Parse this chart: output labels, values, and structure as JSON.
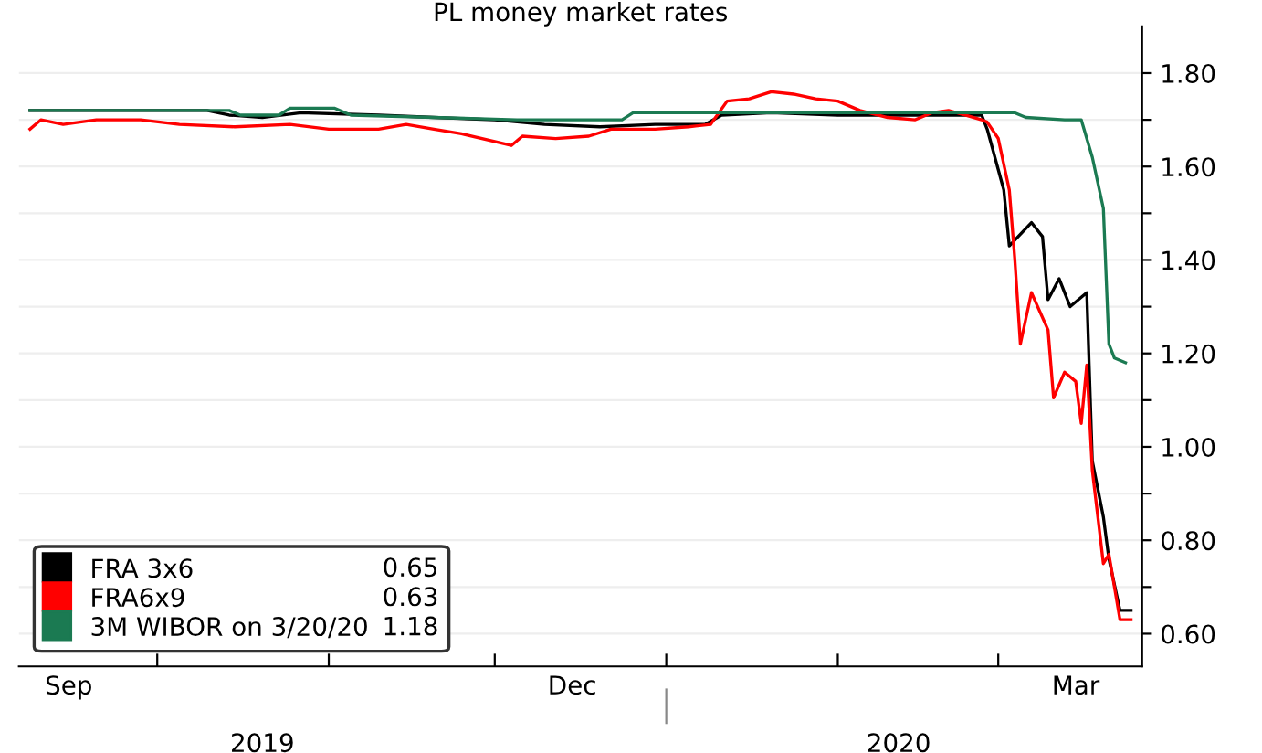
{
  "chart_data": {
    "type": "line",
    "title": "PL money market rates",
    "series": [
      {
        "name": "FRA 3x6",
        "color": "#000000",
        "x": [
          "2019-09-08",
          "2019-10-10",
          "2019-10-14",
          "2019-10-20",
          "2019-10-27",
          "2019-11-10",
          "2019-11-20",
          "2019-12-01",
          "2019-12-10",
          "2019-12-20",
          "2019-12-30",
          "2020-01-08",
          "2020-01-11",
          "2020-01-20",
          "2020-02-01",
          "2020-02-20",
          "2020-02-27",
          "2020-02-28",
          "2020-03-02",
          "2020-03-03",
          "2020-03-07",
          "2020-03-09",
          "2020-03-10",
          "2020-03-12",
          "2020-03-14",
          "2020-03-17",
          "2020-03-18",
          "2020-03-20",
          "2020-03-21",
          "2020-03-23",
          "2020-03-25"
        ],
        "values": [
          1.72,
          1.72,
          1.71,
          1.705,
          1.715,
          1.71,
          1.705,
          1.7,
          1.69,
          1.685,
          1.69,
          1.69,
          1.71,
          1.715,
          1.71,
          1.71,
          1.71,
          1.68,
          1.55,
          1.43,
          1.48,
          1.45,
          1.315,
          1.36,
          1.3,
          1.33,
          0.97,
          0.85,
          0.76,
          0.65,
          0.65
        ]
      },
      {
        "name": "FRA6x9",
        "color": "#ff0000",
        "x": [
          "2019-09-08",
          "2019-09-10",
          "2019-09-14",
          "2019-09-20",
          "2019-09-28",
          "2019-10-05",
          "2019-10-15",
          "2019-10-25",
          "2019-11-01",
          "2019-11-10",
          "2019-11-15",
          "2019-11-20",
          "2019-11-25",
          "2019-12-04",
          "2019-12-06",
          "2019-12-12",
          "2019-12-18",
          "2019-12-22",
          "2019-12-30",
          "2020-01-05",
          "2020-01-09",
          "2020-01-12",
          "2020-01-16",
          "2020-01-20",
          "2020-01-24",
          "2020-01-28",
          "2020-02-01",
          "2020-02-05",
          "2020-02-10",
          "2020-02-15",
          "2020-02-18",
          "2020-02-21",
          "2020-02-24",
          "2020-02-27",
          "2020-02-28",
          "2020-03-01",
          "2020-03-03",
          "2020-03-04",
          "2020-03-05",
          "2020-03-07",
          "2020-03-10",
          "2020-03-11",
          "2020-03-13",
          "2020-03-15",
          "2020-03-16",
          "2020-03-17",
          "2020-03-18",
          "2020-03-20",
          "2020-03-21",
          "2020-03-23",
          "2020-03-25"
        ],
        "values": [
          1.68,
          1.7,
          1.69,
          1.7,
          1.7,
          1.69,
          1.685,
          1.69,
          1.68,
          1.68,
          1.69,
          1.68,
          1.67,
          1.645,
          1.665,
          1.66,
          1.665,
          1.68,
          1.68,
          1.685,
          1.69,
          1.74,
          1.745,
          1.76,
          1.755,
          1.745,
          1.74,
          1.72,
          1.705,
          1.7,
          1.715,
          1.72,
          1.71,
          1.7,
          1.695,
          1.66,
          1.55,
          1.4,
          1.22,
          1.33,
          1.25,
          1.105,
          1.16,
          1.14,
          1.05,
          1.175,
          0.95,
          0.75,
          0.77,
          0.63,
          0.63
        ]
      },
      {
        "name": "3M WIBOR on 3/20/20",
        "color": "#1b7a52",
        "x": [
          "2019-09-08",
          "2019-10-14",
          "2019-10-16",
          "2019-10-23",
          "2019-10-25",
          "2019-11-02",
          "2019-11-05",
          "2019-12-05",
          "2019-12-24",
          "2019-12-26",
          "2020-03-04",
          "2020-03-06",
          "2020-03-13",
          "2020-03-16",
          "2020-03-18",
          "2020-03-20",
          "2020-03-21",
          "2020-03-22",
          "2020-03-24"
        ],
        "values": [
          1.72,
          1.72,
          1.71,
          1.71,
          1.725,
          1.725,
          1.71,
          1.7,
          1.7,
          1.715,
          1.715,
          1.705,
          1.7,
          1.7,
          1.62,
          1.51,
          1.22,
          1.19,
          1.18
        ]
      }
    ],
    "annotations": [
      "0.65",
      "0.63",
      "1.18"
    ],
    "xlim": [
      "2019-09-06",
      "2020-03-27"
    ],
    "xticks": [
      {
        "value": "2019-09-15",
        "label": "Sep"
      },
      {
        "value": "2019-10-01",
        "label": null
      },
      {
        "value": "2019-11-01",
        "label": null
      },
      {
        "value": "2019-12-01",
        "label": null
      },
      {
        "value": "2019-12-15",
        "label": "Dec"
      },
      {
        "value": "2020-01-01",
        "label": null
      },
      {
        "value": "2020-02-01",
        "label": null
      },
      {
        "value": "2020-03-01",
        "label": null
      },
      {
        "value": "2020-03-15",
        "label": "Mar"
      }
    ],
    "x2lim": [
      "2019-09-06",
      "2020-03-27"
    ],
    "x2ticks": [
      {
        "value": "2019-10-20",
        "label": "2019"
      },
      {
        "value": "2020-01-01",
        "label": null
      },
      {
        "value": "2020-02-12",
        "label": "2020"
      }
    ],
    "ylim": [
      0.53,
      1.9
    ],
    "yticks": [
      {
        "value": 0.6,
        "label": "0.60"
      },
      {
        "value": 0.7,
        "label": null
      },
      {
        "value": 0.8,
        "label": "0.80"
      },
      {
        "value": 0.9,
        "label": null
      },
      {
        "value": 1.0,
        "label": "1.00"
      },
      {
        "value": 1.1,
        "label": null
      },
      {
        "value": 1.2,
        "label": "1.20"
      },
      {
        "value": 1.3,
        "label": null
      },
      {
        "value": 1.4,
        "label": "1.40"
      },
      {
        "value": 1.5,
        "label": null
      },
      {
        "value": 1.6,
        "label": "1.60"
      },
      {
        "value": 1.7,
        "label": null
      },
      {
        "value": 1.8,
        "label": "1.80"
      }
    ],
    "grid": "y",
    "legend": "bottom left",
    "marker": "none",
    "line_style": "solid"
  }
}
